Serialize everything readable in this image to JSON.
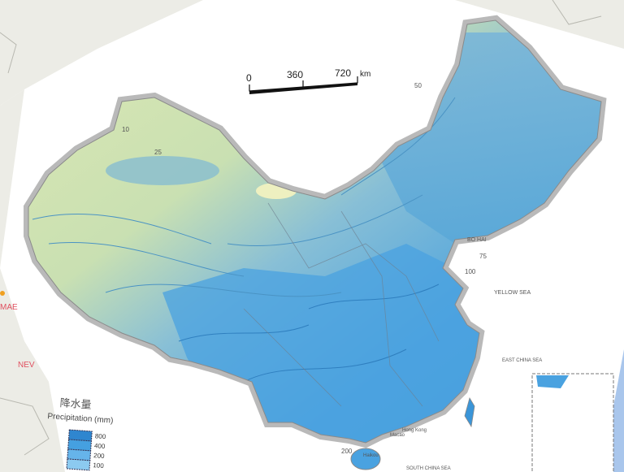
{
  "map": {
    "legend": {
      "title_cn": "降水量",
      "title_en": "Precipitation (mm)",
      "classes": [
        {
          "label": "800",
          "color": "#2f86cf"
        },
        {
          "label": "400",
          "color": "#45a0e0"
        },
        {
          "label": "200",
          "color": "#66b4ea"
        },
        {
          "label": "100",
          "color": "#8ccaf0"
        }
      ]
    },
    "scale_bar": {
      "ticks": [
        "0",
        "360",
        "720"
      ],
      "unit": "km"
    },
    "sea_labels": {
      "bohai": "BO HAI",
      "yellow_sea": "YELLOW SEA",
      "east_china_sea": "EAST CHINA SEA",
      "south_china_sea": "SOUTH CHINA SEA"
    },
    "place_labels": {
      "hong_kong": "Hong Kong",
      "macao": "Macao",
      "haikou": "Haikou"
    },
    "outside_labels": {
      "left_1": "MAE",
      "left_2": "NEV"
    },
    "contour_labels": [
      "50",
      "75",
      "100",
      "200",
      "25",
      "10"
    ],
    "colors": {
      "dry": "#dfe9b4",
      "mid": "#9cc9c8",
      "wet": "#3f9ad9",
      "background_land": "#ececE6",
      "sea": "#a9c6ec"
    }
  }
}
